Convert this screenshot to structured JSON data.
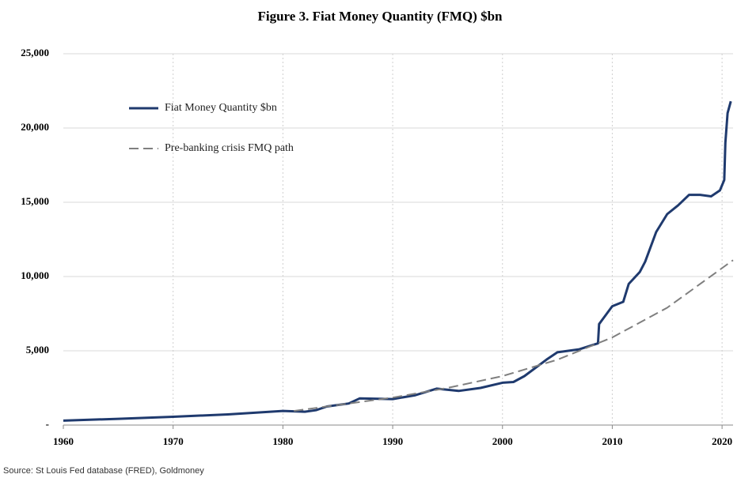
{
  "chart_data": {
    "type": "line",
    "title": "Figure 3. Fiat Money Quantity (FMQ)  $bn",
    "source": "Source: St Louis Fed  database (FRED), Goldmoney",
    "xlim": [
      1960,
      2021
    ],
    "xticks": [
      1960,
      1970,
      1980,
      1990,
      2000,
      2010,
      2020
    ],
    "ylim": [
      0,
      25000
    ],
    "yticks": [
      {
        "value": 0,
        "label": "-"
      },
      {
        "value": 5000,
        "label": "5,000"
      },
      {
        "value": 10000,
        "label": "10,000"
      },
      {
        "value": 15000,
        "label": "15,000"
      },
      {
        "value": 20000,
        "label": "20,000"
      },
      {
        "value": 25000,
        "label": "25,000"
      }
    ],
    "grid": true,
    "legend": "upper left",
    "series": [
      {
        "name": "Fiat Money Quantity $bn",
        "color": "#1f3a6e",
        "dashed": false,
        "x": [
          1960,
          1965,
          1970,
          1975,
          1980,
          1982,
          1983,
          1984,
          1986,
          1987,
          1990,
          1992,
          1994,
          1996,
          1998,
          2000,
          2001,
          2002,
          2004,
          2005,
          2007,
          2008.7,
          2008.8,
          2009.5,
          2010,
          2011,
          2011.5,
          2012.5,
          2013,
          2014,
          2015,
          2016,
          2017,
          2018,
          2019,
          2019.8,
          2020.2,
          2020.3,
          2020.5,
          2020.8
        ],
        "values": [
          300,
          420,
          560,
          720,
          950,
          900,
          1000,
          1250,
          1450,
          1800,
          1750,
          2000,
          2450,
          2300,
          2500,
          2850,
          2900,
          3300,
          4400,
          4900,
          5100,
          5500,
          6800,
          7500,
          8000,
          8300,
          9500,
          10300,
          11000,
          13000,
          14200,
          14800,
          15500,
          15500,
          15400,
          15800,
          16500,
          19000,
          21000,
          21800
        ]
      },
      {
        "name": "Pre-banking crisis FMQ path",
        "color": "#7f7f7f",
        "dashed": true,
        "x": [
          1981,
          1985,
          1990,
          1995,
          2000,
          2005,
          2010,
          2015,
          2021
        ],
        "values": [
          950,
          1350,
          1850,
          2500,
          3300,
          4400,
          5900,
          7900,
          11100
        ]
      }
    ]
  }
}
